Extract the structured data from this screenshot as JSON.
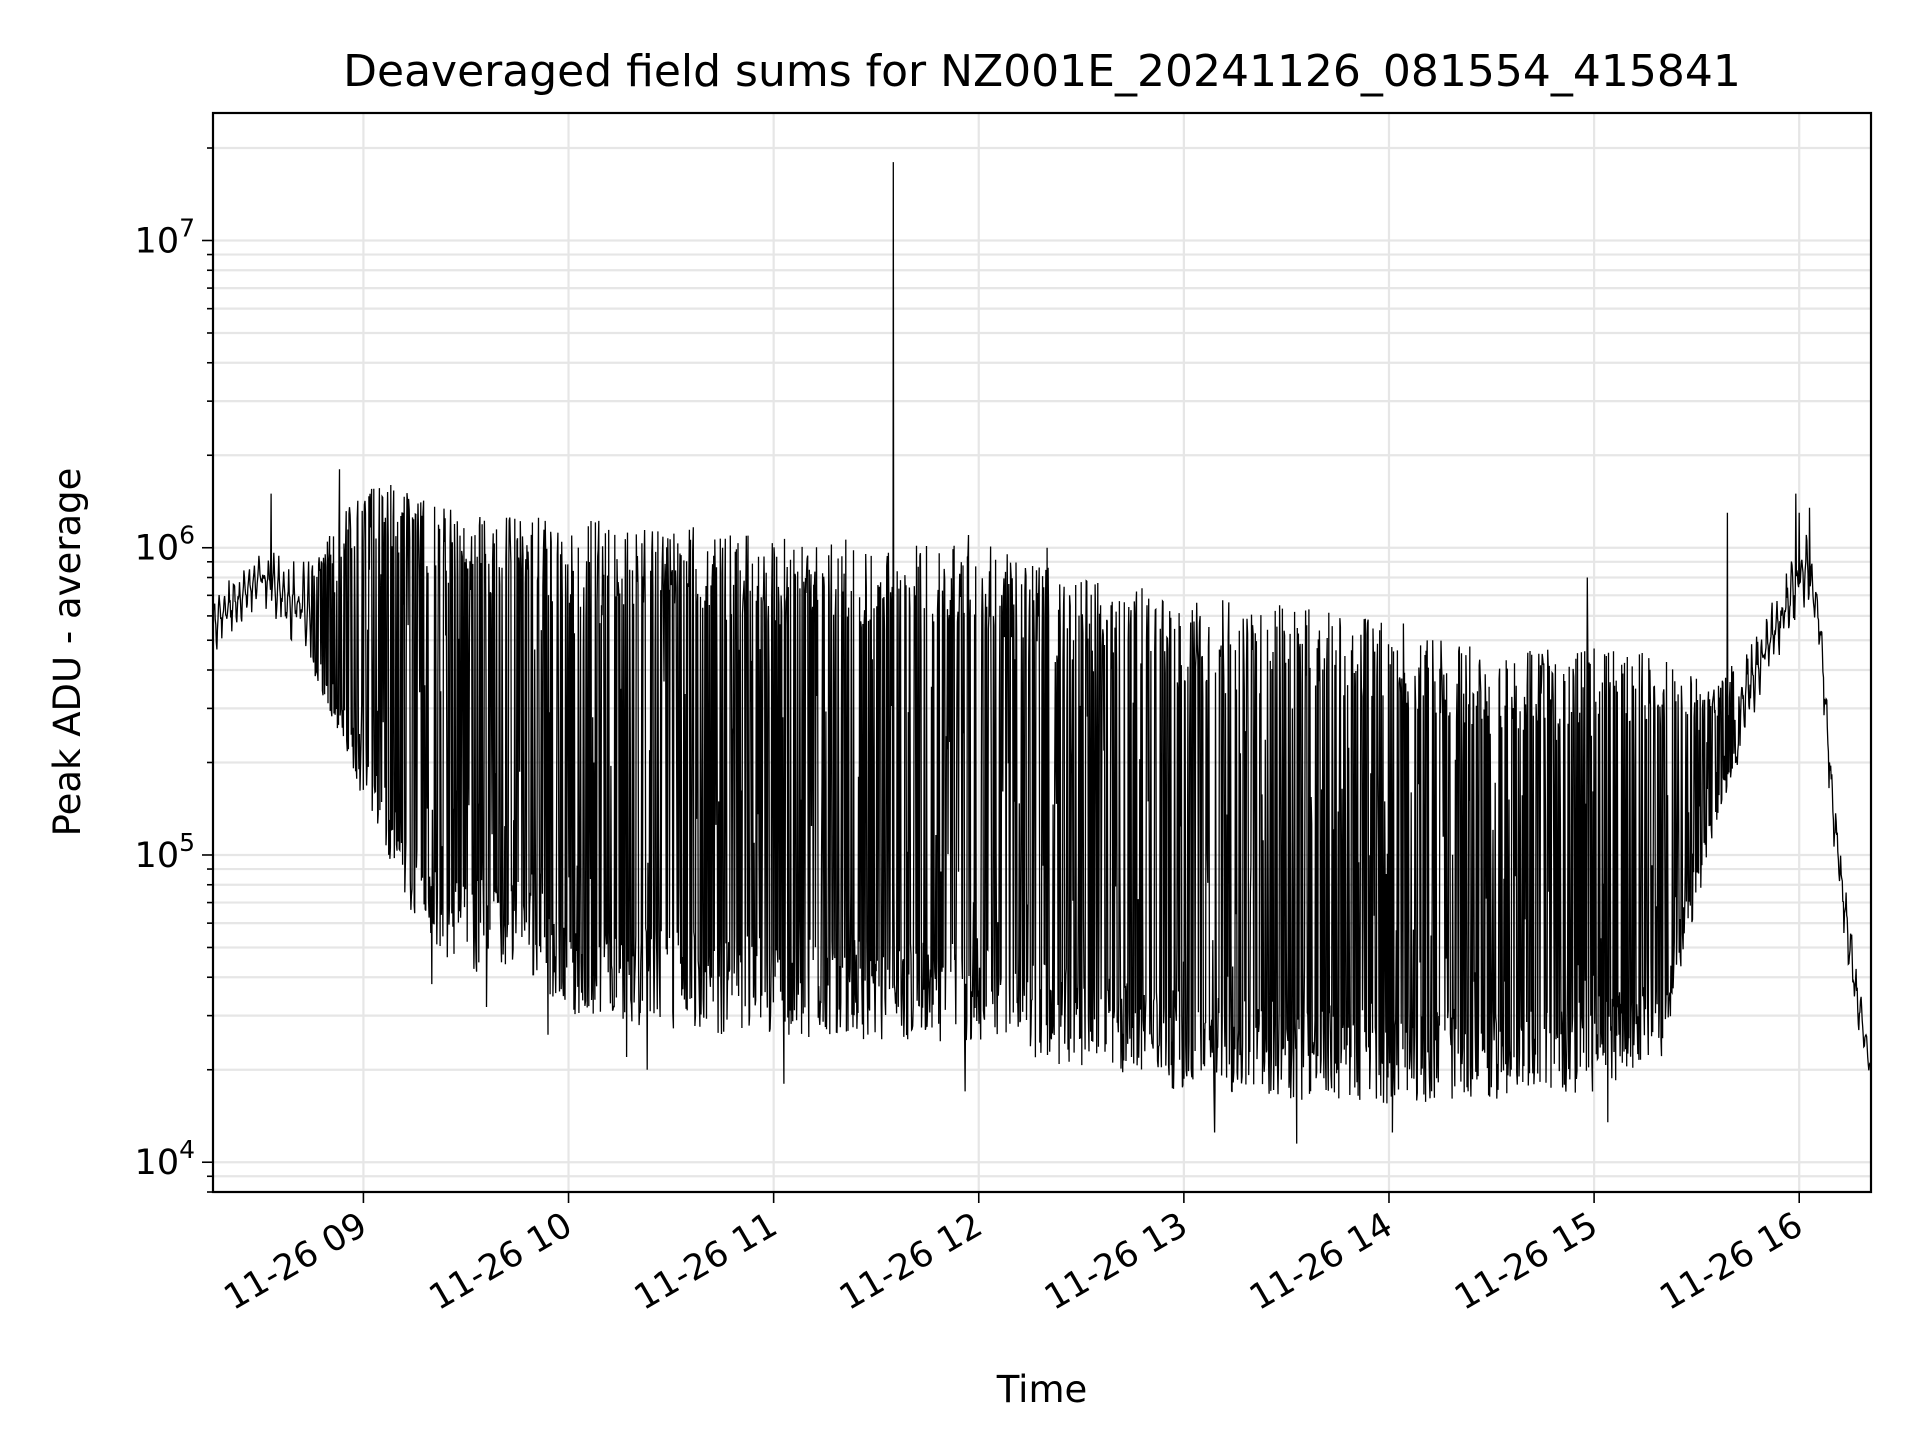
{
  "chart_data": {
    "type": "line",
    "title": "Deaveraged field sums for NZ001E_20241126_081554_415841",
    "xlabel": "Time",
    "ylabel": "Peak ADU - average",
    "y_scale": "log",
    "ylim": [
      8000,
      26000000
    ],
    "xlim": [
      "2024-11-26 08:16",
      "2024-11-26 16:21"
    ],
    "x_ticks": [
      {
        "at": "2024-11-26 09:00",
        "label": "11-26 09"
      },
      {
        "at": "2024-11-26 10:00",
        "label": "11-26 10"
      },
      {
        "at": "2024-11-26 11:00",
        "label": "11-26 11"
      },
      {
        "at": "2024-11-26 12:00",
        "label": "11-26 12"
      },
      {
        "at": "2024-11-26 13:00",
        "label": "11-26 13"
      },
      {
        "at": "2024-11-26 14:00",
        "label": "11-26 14"
      },
      {
        "at": "2024-11-26 15:00",
        "label": "11-26 15"
      },
      {
        "at": "2024-11-26 16:00",
        "label": "11-26 16"
      }
    ],
    "y_ticks": [
      {
        "value": 10000,
        "base": "10",
        "exp": "4"
      },
      {
        "value": 100000,
        "base": "10",
        "exp": "5"
      },
      {
        "value": 1000000,
        "base": "10",
        "exp": "6"
      },
      {
        "value": 10000000,
        "base": "10",
        "exp": "7"
      }
    ],
    "grid": true,
    "series": [
      {
        "color": "#000000",
        "envelope": [
          {
            "t": "2024-11-26 08:16",
            "top": 700000,
            "bottom": 450000
          },
          {
            "t": "2024-11-26 08:30",
            "top": 1000000,
            "bottom": 650000
          },
          {
            "t": "2024-11-26 08:45",
            "top": 900000,
            "bottom": 400000
          },
          {
            "t": "2024-11-26 09:00",
            "top": 1600000,
            "bottom": 150000
          },
          {
            "t": "2024-11-26 09:15",
            "top": 1500000,
            "bottom": 60000
          },
          {
            "t": "2024-11-26 09:30",
            "top": 1350000,
            "bottom": 40000
          },
          {
            "t": "2024-11-26 09:45",
            "top": 1300000,
            "bottom": 45000
          },
          {
            "t": "2024-11-26 10:00",
            "top": 1250000,
            "bottom": 30000
          },
          {
            "t": "2024-11-26 10:30",
            "top": 1200000,
            "bottom": 27000
          },
          {
            "t": "2024-11-26 11:00",
            "top": 1100000,
            "bottom": 25000
          },
          {
            "t": "2024-11-26 11:30",
            "top": 1050000,
            "bottom": 25000
          },
          {
            "t": "2024-11-26 12:00",
            "top": 1050000,
            "bottom": 24000
          },
          {
            "t": "2024-11-26 12:30",
            "top": 800000,
            "bottom": 20000
          },
          {
            "t": "2024-11-26 13:00",
            "top": 700000,
            "bottom": 17000
          },
          {
            "t": "2024-11-26 13:30",
            "top": 650000,
            "bottom": 16000
          },
          {
            "t": "2024-11-26 14:00",
            "top": 600000,
            "bottom": 15500
          },
          {
            "t": "2024-11-26 14:30",
            "top": 450000,
            "bottom": 16000
          },
          {
            "t": "2024-11-26 15:00",
            "top": 500000,
            "bottom": 17000
          },
          {
            "t": "2024-11-26 15:20",
            "top": 450000,
            "bottom": 22000
          },
          {
            "t": "2024-11-26 15:35",
            "top": 350000,
            "bottom": 120000
          },
          {
            "t": "2024-11-26 15:50",
            "top": 600000,
            "bottom": 350000
          },
          {
            "t": "2024-11-26 16:02",
            "top": 1200000,
            "bottom": 650000
          },
          {
            "t": "2024-11-26 16:06",
            "top": 700000,
            "bottom": 450000
          },
          {
            "t": "2024-11-26 16:10",
            "top": 180000,
            "bottom": 100000
          },
          {
            "t": "2024-11-26 16:16",
            "top": 50000,
            "bottom": 30000
          },
          {
            "t": "2024-11-26 16:21",
            "top": 22000,
            "bottom": 18500
          }
        ],
        "spikes": [
          {
            "t": "2024-11-26 08:33",
            "value": 1500000
          },
          {
            "t": "2024-11-26 08:53",
            "value": 1800000
          },
          {
            "t": "2024-11-26 09:08",
            "value": 1600000
          },
          {
            "t": "2024-11-26 11:35",
            "value": 18000000
          },
          {
            "t": "2024-11-26 11:57",
            "value": 1100000
          },
          {
            "t": "2024-11-26 12:20",
            "value": 1000000
          },
          {
            "t": "2024-11-26 14:58",
            "value": 800000
          },
          {
            "t": "2024-11-26 15:39",
            "value": 1300000
          },
          {
            "t": "2024-11-26 15:59",
            "value": 1500000
          },
          {
            "t": "2024-11-26 16:00",
            "value": 1300000
          },
          {
            "t": "2024-11-26 16:03",
            "value": 1350000
          },
          {
            "t": "2024-11-26 09:20",
            "value": 38000
          },
          {
            "t": "2024-11-26 09:36",
            "value": 32000
          },
          {
            "t": "2024-11-26 09:54",
            "value": 26000
          },
          {
            "t": "2024-11-26 10:17",
            "value": 22000
          },
          {
            "t": "2024-11-26 10:23",
            "value": 20000
          },
          {
            "t": "2024-11-26 11:03",
            "value": 18000
          },
          {
            "t": "2024-11-26 11:56",
            "value": 17000
          },
          {
            "t": "2024-11-26 13:33",
            "value": 11500
          },
          {
            "t": "2024-11-26 13:09",
            "value": 12500
          },
          {
            "t": "2024-11-26 14:01",
            "value": 12500
          },
          {
            "t": "2024-11-26 15:04",
            "value": 13500
          }
        ]
      }
    ]
  }
}
